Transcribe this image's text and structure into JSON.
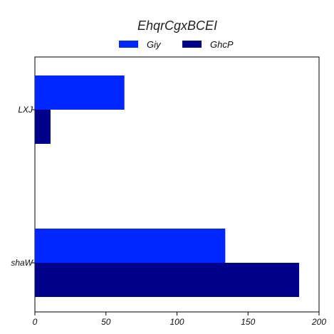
{
  "chart_data": {
    "type": "bar",
    "orientation": "horizontal",
    "title": "EhqrCgxBCEI",
    "xlabel": "",
    "ylabel": "",
    "categories": [
      "LXJ",
      "shaW"
    ],
    "series": [
      {
        "name": "Giy",
        "values": [
          63,
          134
        ],
        "color": "#0026ff"
      },
      {
        "name": "GhcP",
        "values": [
          11,
          186
        ],
        "color": "#00008b"
      }
    ],
    "xlim": [
      0,
      200
    ],
    "xticks": [
      "0",
      "50",
      "100",
      "150",
      "200"
    ],
    "grid": false,
    "legend_position": "top-center"
  }
}
